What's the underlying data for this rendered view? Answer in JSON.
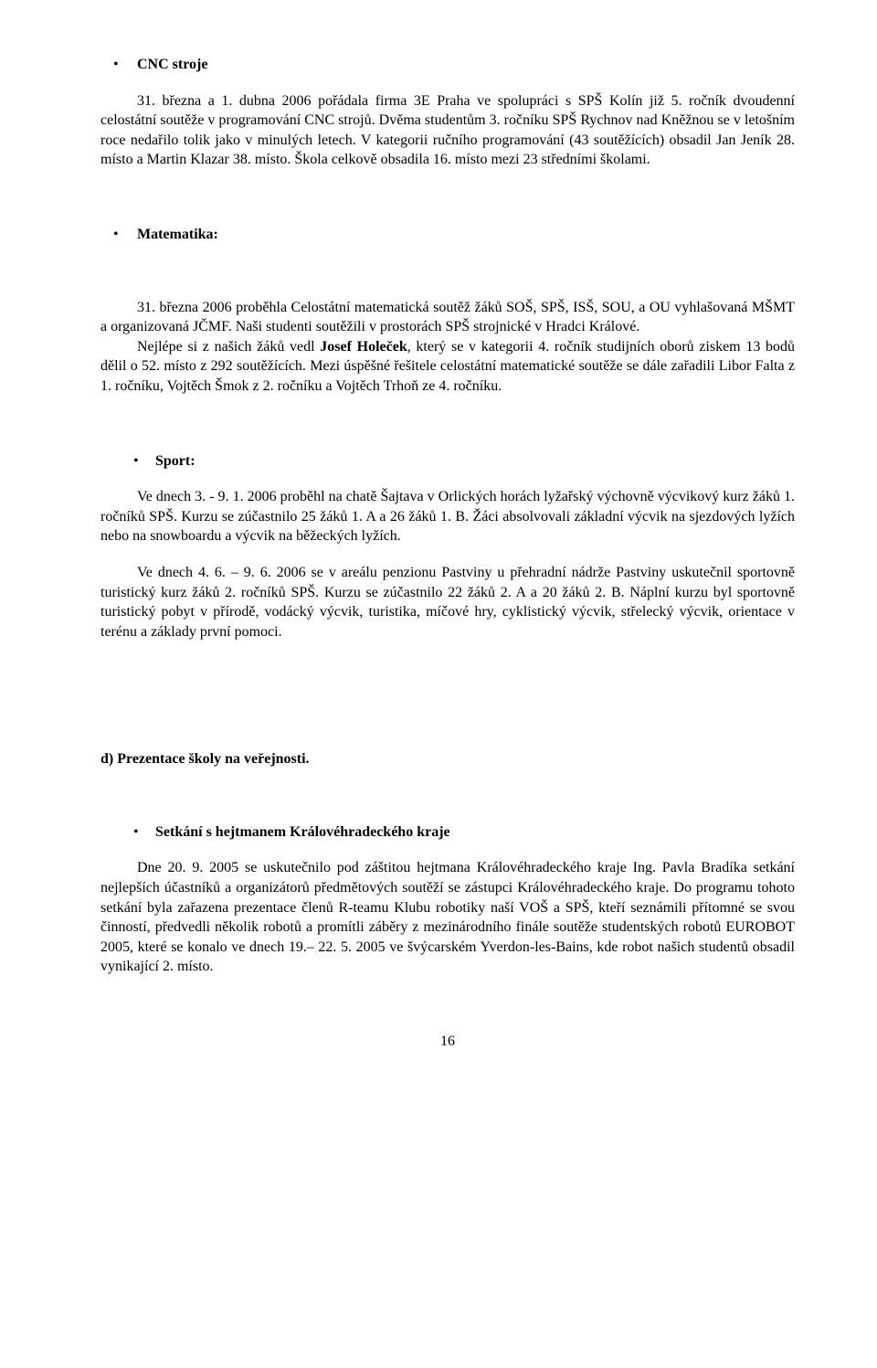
{
  "heading_cnc": "CNC stroje",
  "para_cnc": "31. března a 1. dubna 2006 pořádala firma 3E Praha ve spolupráci s SPŠ Kolín již 5. ročník dvoudenní celostátní soutěže v programování CNC strojů. Dvěma studentům 3. ročníku SPŠ Rychnov nad Kněžnou se v letošním roce nedařilo tolik jako v minulých letech. V kategorii ručního programování (43 soutěžících) obsadil  Jan Jeník 28. místo a Martin Klazar 38. místo. Škola celkově obsadila 16. místo mezi 23 středními školami.",
  "heading_math": "Matematika:",
  "para_math_1": "31. března 2006 proběhla Celostátní matematická soutěž žáků SOŠ, SPŠ, ISŠ, SOU, a OU vyhlašovaná MŠMT a organizovaná JČMF. Naši studenti soutěžili v prostorách SPŠ strojnické v Hradci Králové.",
  "para_math_2a": "Nejlépe si z našich žáků vedl ",
  "para_math_2_bold": "Josef Holeček",
  "para_math_2b": ", který se v kategorii 4. ročník studijních oborů ziskem 13 bodů  dělil o 52. místo z 292 soutěžících. Mezi úspěšné řešitele celostátní matematické soutěže se dále zařadili Libor Falta z 1. ročníku, Vojtěch Šmok z 2. ročníku a Vojtěch Trhoň ze 4. ročníku.",
  "heading_sport": "Sport:",
  "para_sport_1": "Ve dnech  3. - 9. 1. 2006 proběhl na chatě Šajtava v Orlických horách lyžařský výchovně výcvikový kurz žáků 1. ročníků SPŠ. Kurzu se zúčastnilo 25 žáků 1. A a 26 žáků 1. B. Žáci absolvovali základní výcvik na sjezdových lyžích nebo na snowboardu a výcvik na běžeckých lyžích.",
  "para_sport_2": "Ve dnech 4. 6. – 9. 6. 2006 se v areálu penzionu Pastviny u přehradní nádrže Pastviny uskutečnil sportovně turistický kurz žáků 2. ročníků SPŠ. Kurzu se zúčastnilo 22 žáků 2. A a 20 žáků 2. B. Náplní kurzu byl sportovně turistický pobyt v přírodě, vodácký výcvik, turistika, míčové hry, cyklistický výcvik, střelecký výcvik, orientace v terénu a základy první pomoci.",
  "section_d": "d)   Prezentace školy na veřejnosti.",
  "heading_hejtman": "Setkání s hejtmanem Královéhradeckého kraje",
  "para_hejtman": "Dne 20. 9. 2005 se uskutečnilo pod záštitou hejtmana Královéhradeckého kraje Ing. Pavla Bradíka setkání nejlepších účastníků a organizátorů předmětových soutěží se zástupci Královéhradeckého kraje. Do programu tohoto setkání byla zařazena prezentace členů R-teamu Klubu robotiky naší VOŠ a SPŠ, kteří seznámili přítomné se svou činností, předvedli několik robotů a promítli záběry z mezinárodního finále soutěže studentských robotů EUROBOT 2005, které se konalo ve dnech 19.– 22. 5. 2005 ve švýcarském Yverdon-les-Bains, kde robot našich studentů obsadil vynikající 2. místo.",
  "pagenum": "16"
}
